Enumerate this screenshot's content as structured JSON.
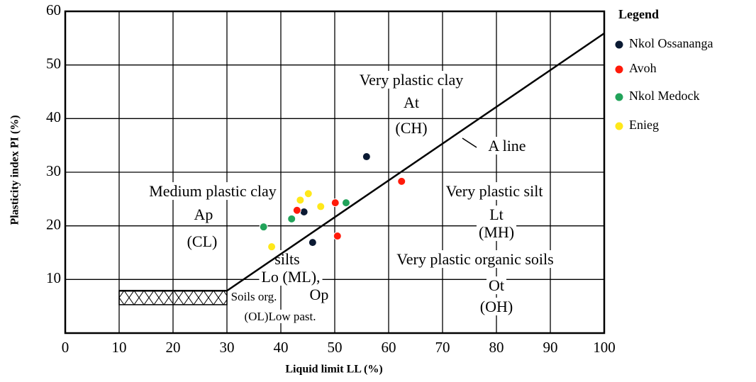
{
  "chart_data": {
    "type": "scatter",
    "x_label": "Liquid limit LL (%)",
    "y_label": "Plasticity index PI (%)",
    "xlim": [
      0,
      100
    ],
    "ylim": [
      0,
      60
    ],
    "xticks": [
      0,
      10,
      20,
      30,
      40,
      50,
      60,
      70,
      80,
      90,
      100
    ],
    "yticks": [
      10,
      20,
      30,
      40,
      50,
      60
    ],
    "grid": true,
    "legend_title": "Legend",
    "legend_position": "right",
    "series": [
      {
        "name": "Nkol Ossananga",
        "color": "#0b1a33",
        "x": [
          55.9,
          44.3,
          45.9
        ],
        "values": [
          32.9,
          22.6,
          16.9
        ]
      },
      {
        "name": "Avoh",
        "color": "#ff1a0a",
        "x": [
          62.4,
          43.0,
          50.1,
          50.5
        ],
        "values": [
          28.3,
          22.9,
          24.3,
          18.1
        ]
      },
      {
        "name": "Nkol Medock",
        "color": "#22a35a",
        "x": [
          36.8,
          42.0,
          52.1
        ],
        "values": [
          19.8,
          21.3,
          24.3
        ]
      },
      {
        "name": "Enieg",
        "color": "#ffe81a",
        "x": [
          38.3,
          43.6,
          45.1,
          47.4
        ],
        "values": [
          16.1,
          24.8,
          26.0,
          23.6
        ]
      }
    ],
    "a_line": {
      "x": [
        10,
        30,
        100
      ],
      "values": [
        7.9,
        7.9,
        55.9
      ]
    },
    "hatched_zone": {
      "x": [
        10,
        30
      ],
      "values": [
        5.3,
        7.9
      ]
    },
    "annotations": [
      "Very plastic clay",
      "At",
      "(CH)",
      "A line",
      "Medium plastic clay",
      "Ap",
      "(CL)",
      "Very plastic silt",
      "Lt",
      "(MH)",
      "silts",
      "Lo (ML),",
      "Soils org.",
      "Op",
      "(OL)Low past.",
      "Very plastic organic soils",
      "Ot",
      "(OH)"
    ]
  }
}
